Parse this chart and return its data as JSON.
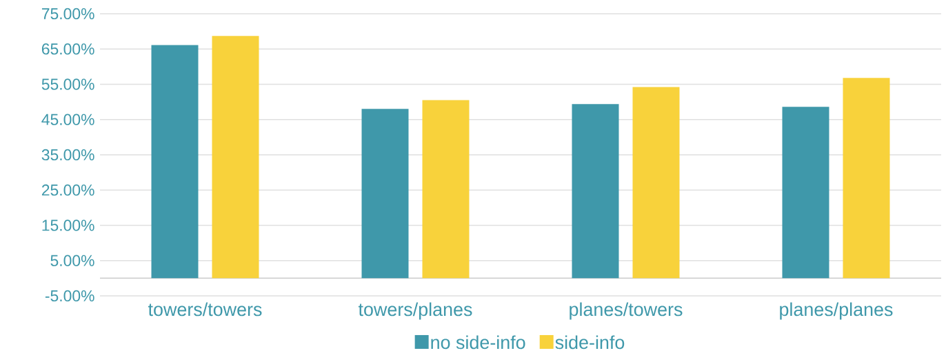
{
  "chart_data": {
    "type": "bar",
    "categories": [
      "towers/towers",
      "towers/planes",
      "planes/towers",
      "planes/planes"
    ],
    "series": [
      {
        "name": "no side-info",
        "color": "#3f98aa",
        "values": [
          66.1,
          48.0,
          49.4,
          48.6
        ]
      },
      {
        "name": "side-info",
        "color": "#f8d23b",
        "values": [
          68.7,
          50.5,
          54.2,
          56.8
        ]
      }
    ],
    "ylim": [
      -5,
      75
    ],
    "yticks": [
      {
        "value": -5,
        "label": "-5.00%"
      },
      {
        "value": 5,
        "label": "5.00%"
      },
      {
        "value": 15,
        "label": "15.00%"
      },
      {
        "value": 25,
        "label": "25.00%"
      },
      {
        "value": 35,
        "label": "35.00%"
      },
      {
        "value": 45,
        "label": "45.00%"
      },
      {
        "value": 55,
        "label": "55.00%"
      },
      {
        "value": 65,
        "label": "65.00%"
      },
      {
        "value": 75,
        "label": "75.00%"
      }
    ],
    "grid": "y",
    "legend": "bottom"
  }
}
